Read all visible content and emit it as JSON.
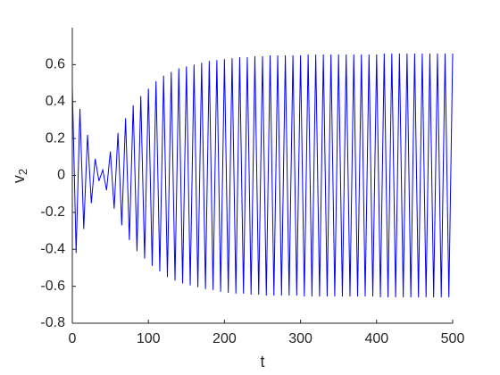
{
  "chart_data": {
    "type": "line",
    "color": "#0000ff",
    "xlabel": "t",
    "ylabel": {
      "text": "v",
      "subscript": "2"
    },
    "xlim": [
      0,
      500
    ],
    "xticks": [
      0,
      100,
      200,
      300,
      400,
      500
    ],
    "ylim": [
      -0.8,
      0.8
    ],
    "yticks": [
      -0.8,
      -0.6,
      -0.4,
      -0.2,
      0,
      0.2,
      0.4,
      0.6
    ],
    "x": [
      0,
      5,
      10,
      15,
      20,
      25,
      30,
      35,
      40,
      45,
      50,
      55,
      60,
      65,
      70,
      75,
      80,
      85,
      90,
      95,
      100,
      105,
      110,
      115,
      120,
      125,
      130,
      135,
      140,
      145,
      150,
      155,
      160,
      165,
      170,
      175,
      180,
      185,
      190,
      195,
      200,
      205,
      210,
      215,
      220,
      225,
      230,
      235,
      240,
      245,
      250,
      255,
      260,
      265,
      270,
      275,
      280,
      285,
      290,
      295,
      300,
      305,
      310,
      315,
      320,
      325,
      330,
      335,
      340,
      345,
      350,
      355,
      360,
      365,
      370,
      375,
      380,
      385,
      390,
      395,
      400,
      405,
      410,
      415,
      420,
      425,
      430,
      435,
      440,
      445,
      450,
      455,
      460,
      465,
      470,
      475,
      480,
      485,
      490,
      495,
      500
    ],
    "values": [
      0.48,
      -0.42,
      0.36,
      -0.29,
      0.22,
      -0.15,
      0.09,
      -0.03,
      0.03,
      -0.08,
      0.13,
      -0.18,
      0.23,
      -0.27,
      0.31,
      -0.35,
      0.38,
      -0.41,
      0.43,
      -0.45,
      0.47,
      -0.49,
      0.51,
      -0.52,
      0.54,
      -0.55,
      0.56,
      -0.57,
      0.58,
      -0.585,
      0.59,
      -0.595,
      0.6,
      -0.605,
      0.61,
      -0.615,
      0.62,
      -0.62,
      0.625,
      -0.63,
      0.63,
      -0.635,
      0.635,
      -0.64,
      0.64,
      -0.64,
      0.64,
      -0.645,
      0.645,
      -0.645,
      0.645,
      -0.65,
      0.65,
      -0.65,
      0.65,
      -0.65,
      0.65,
      -0.65,
      0.65,
      -0.65,
      0.65,
      -0.655,
      0.655,
      -0.655,
      0.655,
      -0.655,
      0.655,
      -0.655,
      0.655,
      -0.655,
      0.655,
      -0.655,
      0.655,
      -0.655,
      0.655,
      -0.655,
      0.655,
      -0.655,
      0.655,
      -0.655,
      0.655,
      -0.66,
      0.66,
      -0.66,
      0.66,
      -0.66,
      0.66,
      -0.66,
      0.66,
      -0.66,
      0.66,
      -0.66,
      0.66,
      -0.66,
      0.66,
      -0.66,
      0.66,
      -0.66,
      0.66,
      -0.66,
      0.66
    ]
  }
}
